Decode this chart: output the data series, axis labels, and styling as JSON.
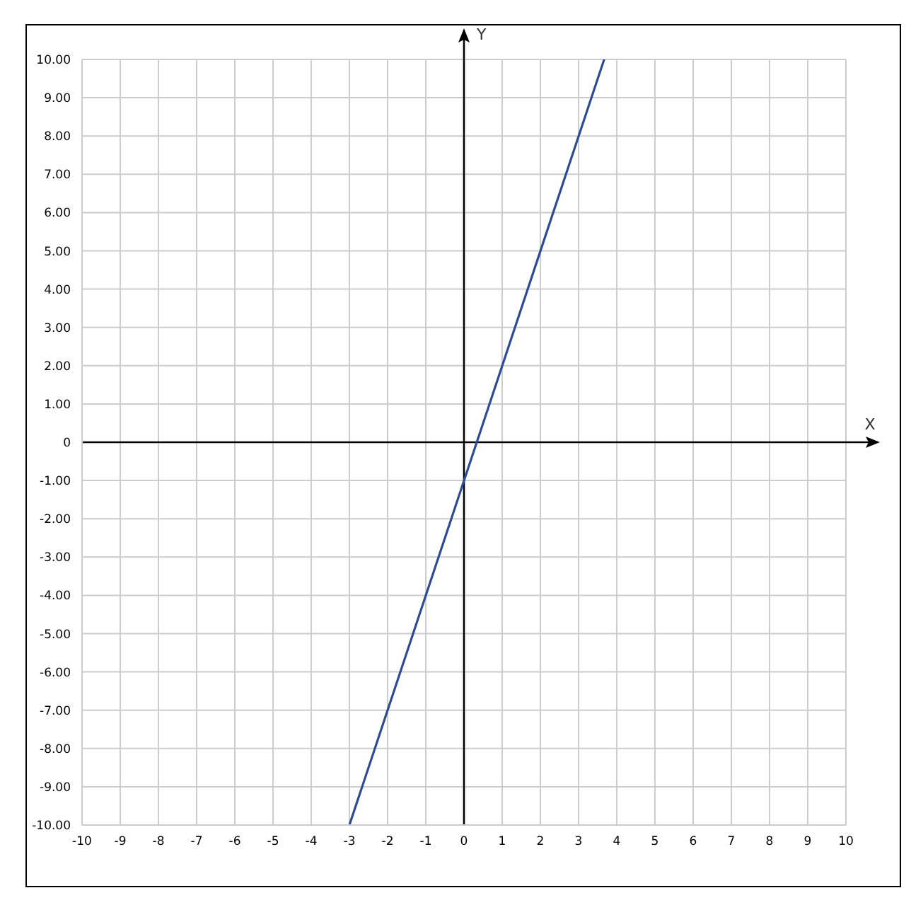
{
  "chart_data": {
    "type": "line",
    "xlabel": "X",
    "ylabel": "Y",
    "x": [
      -3,
      3.67
    ],
    "series": [
      {
        "color": "#2f4b93",
        "values": [
          -10,
          10
        ]
      }
    ],
    "xlim": [
      -10,
      10
    ],
    "ylim": [
      -10,
      10
    ],
    "xticks": [
      -10,
      -9,
      -8,
      -7,
      -6,
      -5,
      -4,
      -3,
      -2,
      -1,
      0,
      1,
      2,
      3,
      4,
      5,
      6,
      7,
      8,
      9,
      10
    ],
    "yticks": [
      {
        "value": -10,
        "label": "-10.00"
      },
      {
        "value": -9,
        "label": "-9.00"
      },
      {
        "value": -8,
        "label": "-8.00"
      },
      {
        "value": -7,
        "label": "-7.00"
      },
      {
        "value": -6,
        "label": "-6.00"
      },
      {
        "value": -5,
        "label": "-5.00"
      },
      {
        "value": -4,
        "label": "-4.00"
      },
      {
        "value": -3,
        "label": "-3.00"
      },
      {
        "value": -2,
        "label": "-2.00"
      },
      {
        "value": -1,
        "label": "-1.00"
      },
      0,
      {
        "value": 1,
        "label": "1.00"
      },
      {
        "value": 2,
        "label": "2.00"
      },
      {
        "value": 3,
        "label": "3.00"
      },
      {
        "value": 4,
        "label": "4.00"
      },
      {
        "value": 5,
        "label": "5.00"
      },
      {
        "value": 6,
        "label": "6.00"
      },
      {
        "value": 7,
        "label": "7.00"
      },
      {
        "value": 8,
        "label": "8.00"
      },
      {
        "value": 9,
        "label": "9.00"
      },
      {
        "value": 10,
        "label": "10.00"
      }
    ],
    "grid": true
  }
}
